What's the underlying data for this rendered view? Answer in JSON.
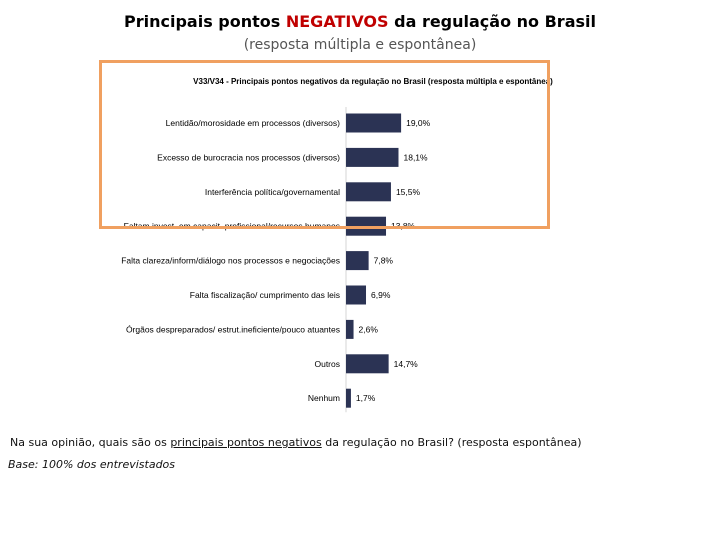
{
  "slide": {
    "title_pre": "Principais pontos ",
    "title_highlight": "NEGATIVOS",
    "title_post": " da regulação no Brasil",
    "subtitle": "(resposta múltipla e espontânea)",
    "question_pre": "Na sua opinião, quais são os ",
    "question_underlined": "principais pontos negativos",
    "question_post": " da regulação no Brasil? (resposta espontânea)",
    "base": "Base: 100% dos entrevistados"
  },
  "colors": {
    "bar": "#2b3354",
    "highlight_border": "#f0a060",
    "title_highlight": "#c00000"
  },
  "chart_data": {
    "type": "bar",
    "orientation": "horizontal",
    "title": "V33/V34 - Principais pontos negativos da regulação no Brasil (resposta múltipla e espontânea)",
    "categories": [
      "Lentidão/morosidade em processos (diversos)",
      "Excesso de burocracia nos processos (diversos)",
      "Interferência política/governamental",
      "Faltam invest. em capacit. profissional/recursos humanos",
      "Falta clareza/inform/diálogo nos processos e negociações",
      "Falta fiscalização/ cumprimento das leis",
      "Órgãos despreparados/ estrut.ineficiente/pouco atuantes",
      "Outros",
      "Nenhum"
    ],
    "values": [
      19.0,
      18.1,
      15.5,
      13.8,
      7.8,
      6.9,
      2.6,
      14.7,
      1.7
    ],
    "value_labels": [
      "19,0%",
      "18,1%",
      "15,5%",
      "13,8%",
      "7,8%",
      "6,9%",
      "2,6%",
      "14,7%",
      "1,7%"
    ],
    "xlim": [
      0,
      100
    ],
    "grid": false,
    "legend": "none"
  }
}
